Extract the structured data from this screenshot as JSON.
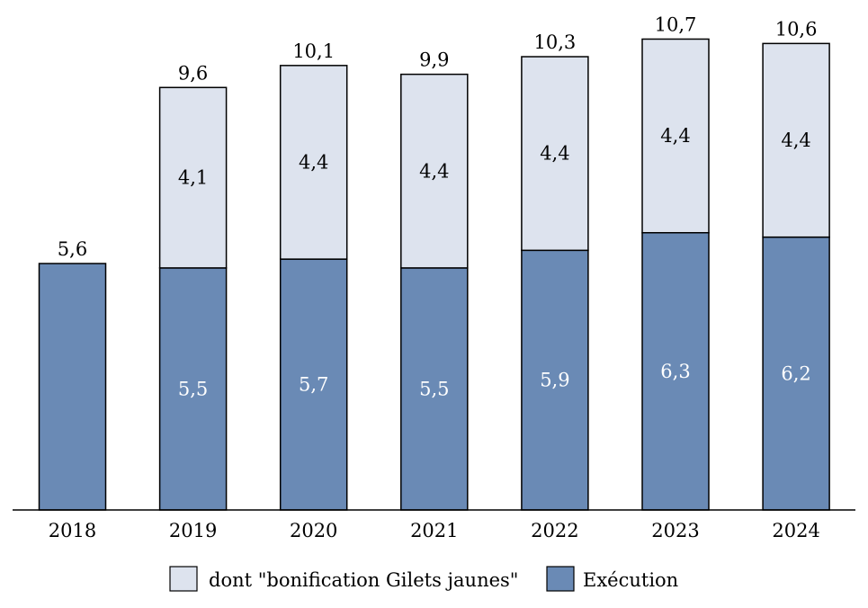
{
  "chart_data": {
    "type": "bar",
    "stacked": true,
    "categories": [
      "2018",
      "2019",
      "2020",
      "2021",
      "2022",
      "2023",
      "2024"
    ],
    "series": [
      {
        "name": "Exécution",
        "values": [
          5.6,
          5.5,
          5.7,
          5.5,
          5.9,
          6.3,
          6.2
        ],
        "labels": [
          null,
          "5,5",
          "5,7",
          "5,5",
          "5,9",
          "6,3",
          "6,2"
        ],
        "color": "#6a8ab5",
        "label_color": "#ffffff"
      },
      {
        "name": "dont \"bonification Gilets jaunes\"",
        "values": [
          0,
          4.1,
          4.4,
          4.4,
          4.4,
          4.4,
          4.4
        ],
        "labels": [
          null,
          "4,1",
          "4,4",
          "4,4",
          "4,4",
          "4,4",
          "4,4"
        ],
        "color": "#dde3ee",
        "label_color": "#000000"
      }
    ],
    "totals": [
      5.6,
      9.6,
      10.1,
      9.9,
      10.3,
      10.7,
      10.6
    ],
    "total_labels": [
      "5,6",
      "9,6",
      "10,1",
      "9,9",
      "10,3",
      "10,7",
      "10,6"
    ],
    "ylim": [
      0,
      11.5
    ],
    "grid": false,
    "legend_position": "bottom",
    "legend_order": [
      1,
      0
    ]
  }
}
